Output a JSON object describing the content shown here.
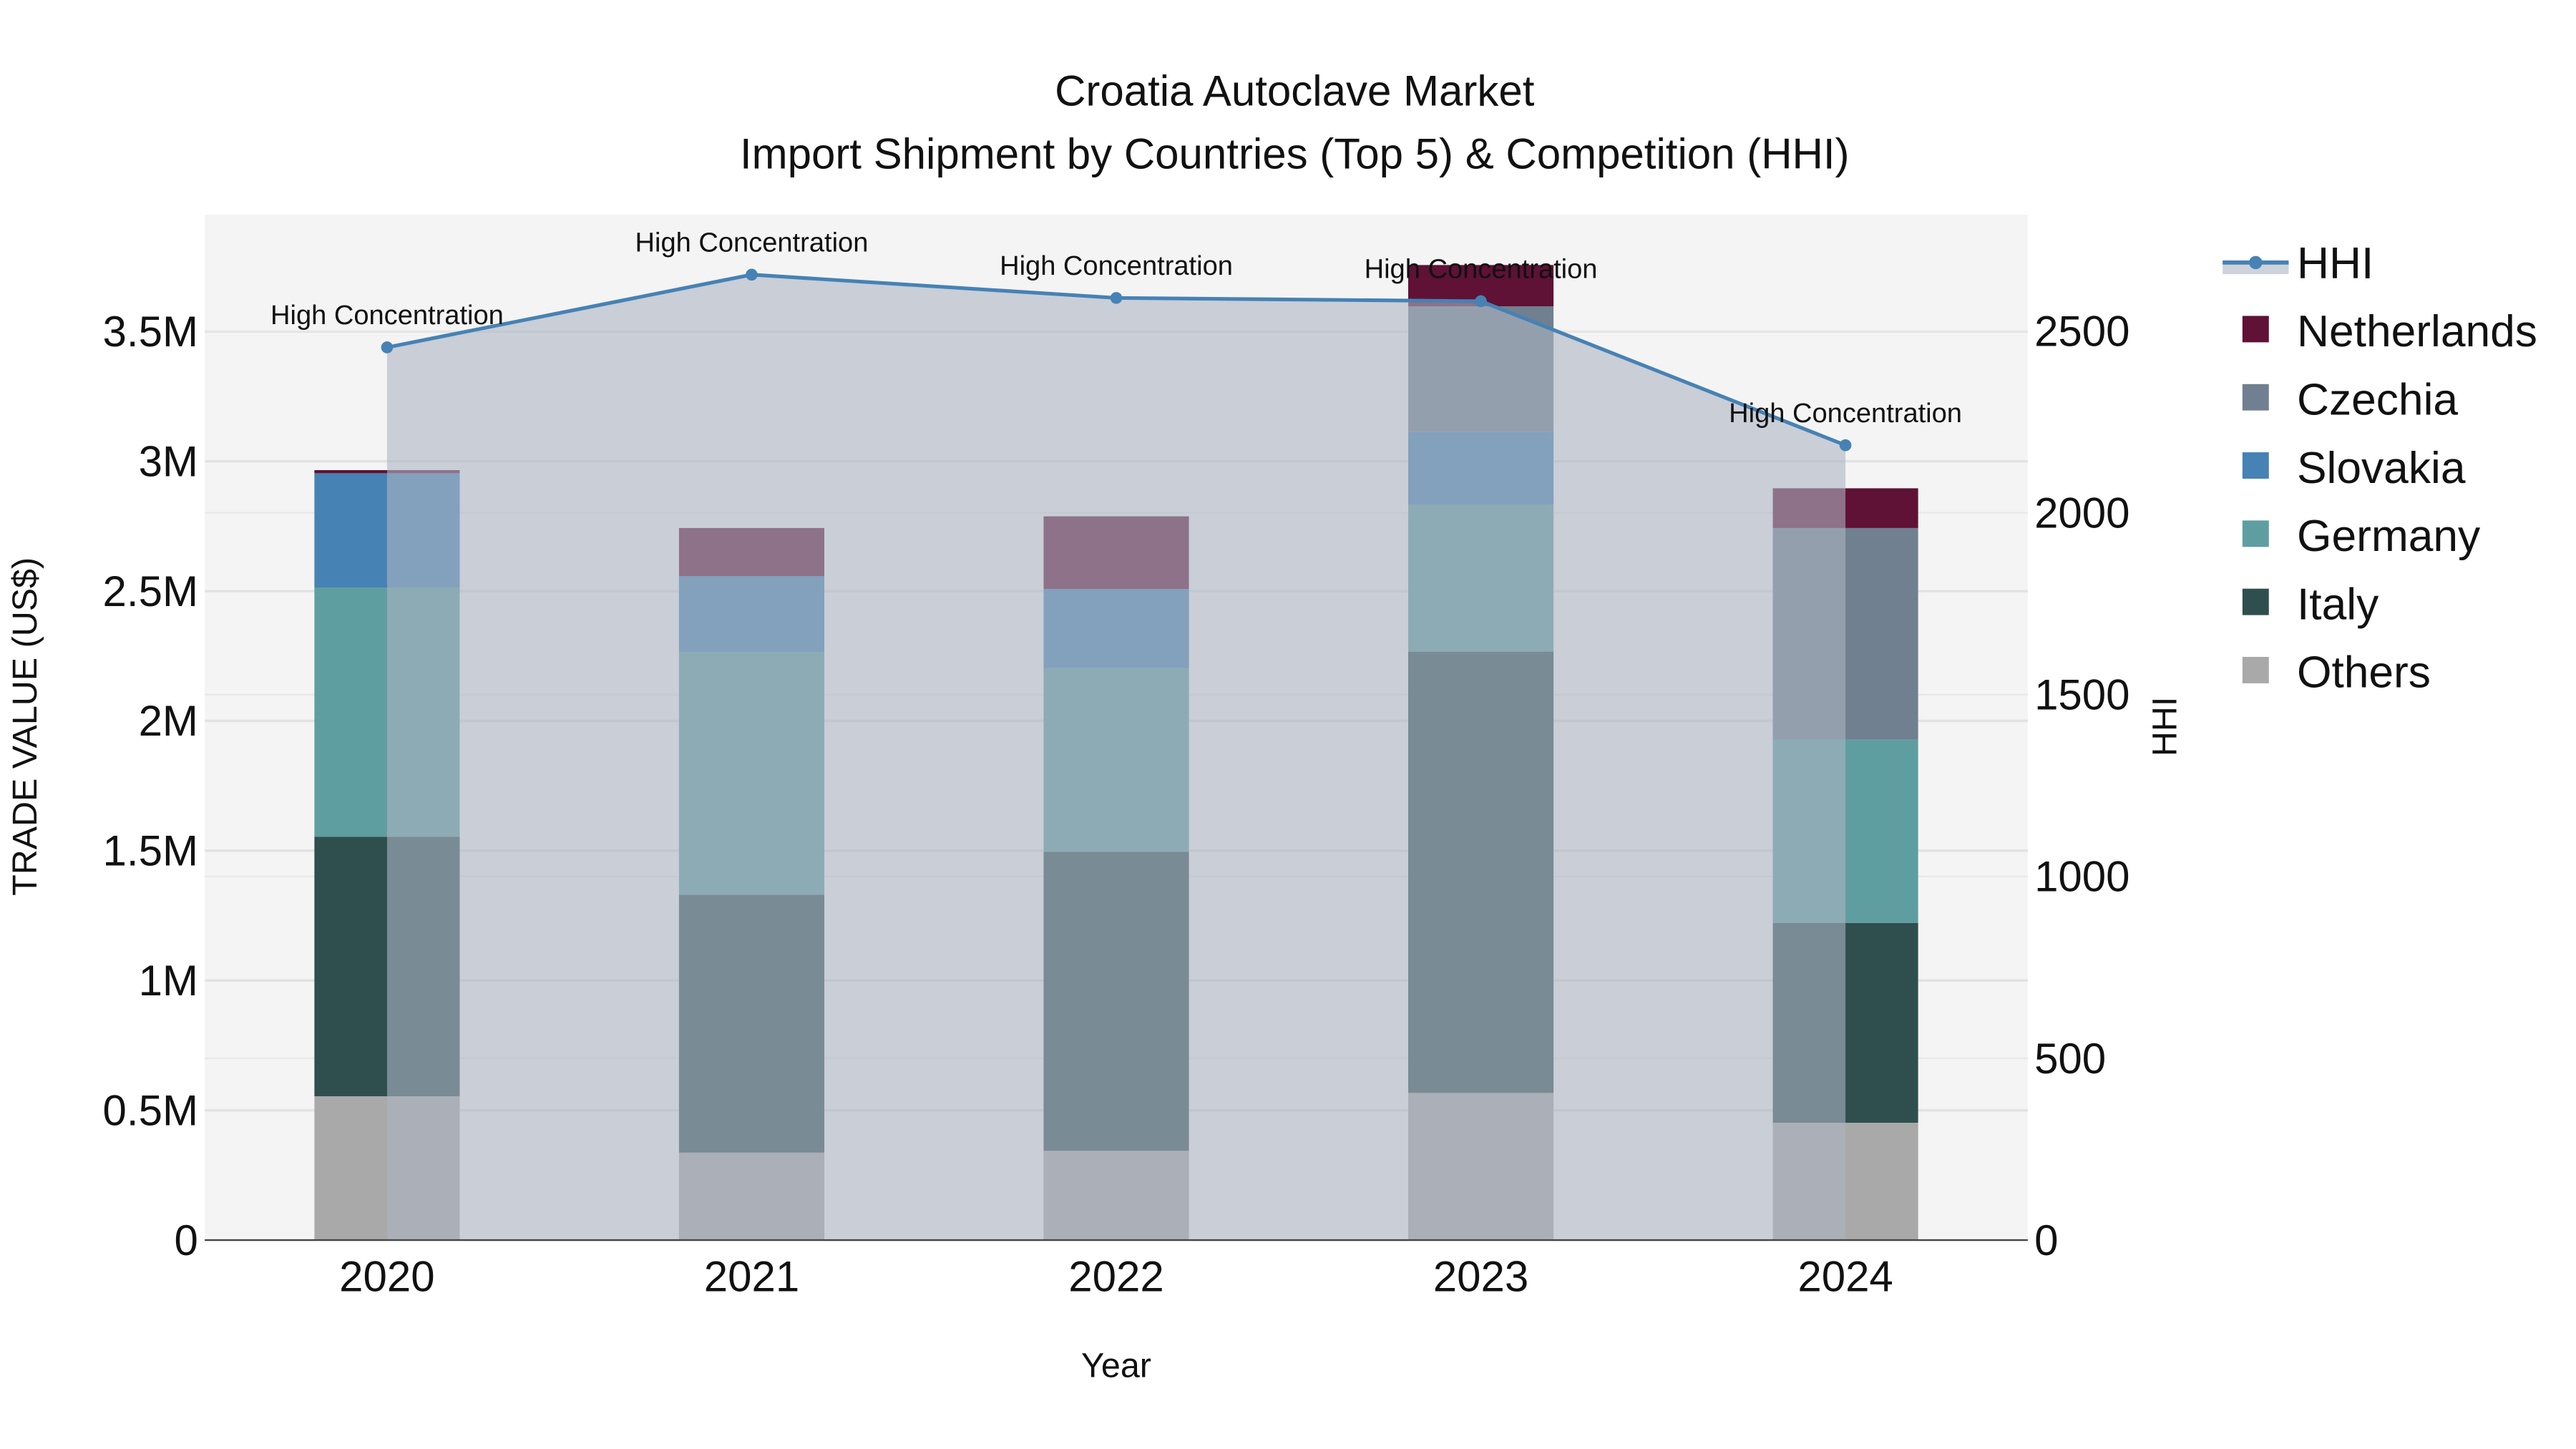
{
  "chart_data": {
    "type": "bar",
    "title": "Croatia Autoclave Market",
    "subtitle": "Import Shipment by Countries (Top 5) & Competition (HHI)",
    "xlabel": "Year",
    "ylabel": "TRADE VALUE (US$)",
    "y2label": "HHI",
    "categories": [
      "2020",
      "2021",
      "2022",
      "2023",
      "2024"
    ],
    "ylim": [
      0,
      3950000
    ],
    "y2lim": [
      0,
      2820
    ],
    "yticks": [
      {
        "v": 0,
        "label": "0"
      },
      {
        "v": 500000,
        "label": "0.5M"
      },
      {
        "v": 1000000,
        "label": "1M"
      },
      {
        "v": 1500000,
        "label": "1.5M"
      },
      {
        "v": 2000000,
        "label": "2M"
      },
      {
        "v": 2500000,
        "label": "2.5M"
      },
      {
        "v": 3000000,
        "label": "3M"
      },
      {
        "v": 3500000,
        "label": "3.5M"
      }
    ],
    "y2ticks": [
      {
        "v": 0,
        "label": "0"
      },
      {
        "v": 500,
        "label": "500"
      },
      {
        "v": 1000,
        "label": "1000"
      },
      {
        "v": 1500,
        "label": "1500"
      },
      {
        "v": 2000,
        "label": "2000"
      },
      {
        "v": 2500,
        "label": "2500"
      }
    ],
    "series": [
      {
        "name": "Others",
        "color": "#a9a9a9",
        "values": [
          554000,
          337000,
          344000,
          567000,
          452000
        ]
      },
      {
        "name": "Italy",
        "color": "#2f4f4f",
        "values": [
          1000000,
          993000,
          1152000,
          1700000,
          770000
        ]
      },
      {
        "name": "Germany",
        "color": "#5f9ea0",
        "values": [
          960000,
          935000,
          707000,
          566000,
          706000
        ]
      },
      {
        "name": "Slovakia",
        "color": "#4682b4",
        "values": [
          440000,
          293000,
          305000,
          280000,
          0
        ]
      },
      {
        "name": "Czechia",
        "color": "#708090",
        "values": [
          0,
          0,
          0,
          484000,
          815000
        ]
      },
      {
        "name": "Netherlands",
        "color": "#5f1136",
        "values": [
          12000,
          185000,
          280000,
          159000,
          153000
        ]
      }
    ],
    "hhi": {
      "name": "HHI",
      "color": "#4682b4",
      "values": [
        2455,
        2655,
        2591,
        2582,
        2186
      ],
      "annotations": [
        "High Concentration",
        "High Concentration",
        "High Concentration",
        "High Concentration",
        "High Concentration"
      ]
    },
    "legend": [
      "HHI",
      "Netherlands",
      "Czechia",
      "Slovakia",
      "Germany",
      "Italy",
      "Others"
    ],
    "legend_position": "right",
    "grid": true
  }
}
